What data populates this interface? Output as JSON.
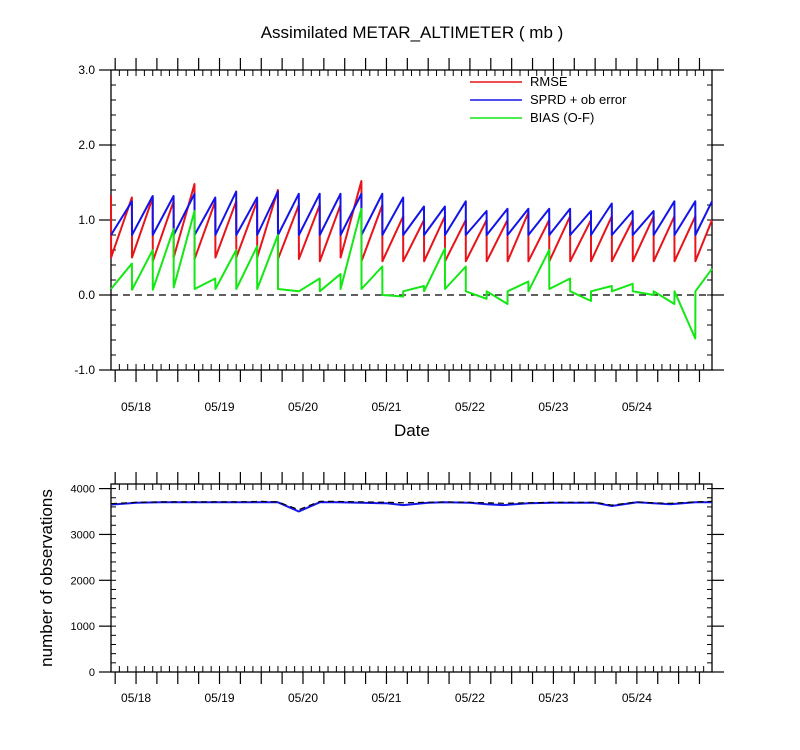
{
  "chart_data": [
    {
      "type": "line",
      "title": "Assimilated METAR_ALTIMETER ( mb )",
      "xlabel": "Date",
      "ylabel": "",
      "ylim": [
        -1.0,
        3.0
      ],
      "yticks": [
        "-1.0",
        "0.0",
        "1.0",
        "2.0",
        "3.0"
      ],
      "xticks": [
        "05/18",
        "05/19",
        "05/20",
        "05/21",
        "05/22",
        "05/23",
        "05/24"
      ],
      "x_range": [
        0,
        72
      ],
      "xtick_positions": [
        3,
        13,
        23,
        33,
        43,
        53,
        63
      ],
      "zero_line": "dashed",
      "legend_placement": "top-right",
      "series": [
        {
          "name": "RMSE",
          "color": "#e8141a",
          "x": [
            0,
            0.01,
            2.5,
            2.51,
            5,
            5.01,
            7.5,
            7.51,
            10,
            10.01,
            12.5,
            12.51,
            15,
            15.01,
            17.5,
            17.51,
            20,
            20.01,
            22.5,
            22.51,
            25,
            25.01,
            27.5,
            27.51,
            30,
            30.01,
            32.5,
            32.51,
            35,
            35.01,
            37.5,
            37.51,
            40,
            40.01,
            42.5,
            42.51,
            45,
            45.01,
            47.5,
            47.51,
            50,
            50.01,
            52.5,
            52.51,
            55,
            55.01,
            57.5,
            57.51,
            60,
            60.01,
            62.5,
            62.51,
            65,
            65.01,
            67.5,
            67.51,
            70,
            70.01,
            72
          ],
          "values": [
            1.33,
            0.5,
            1.3,
            0.5,
            1.3,
            0.45,
            1.25,
            0.5,
            1.48,
            0.48,
            1.25,
            0.5,
            1.25,
            0.5,
            1.25,
            0.5,
            1.4,
            0.48,
            1.2,
            0.48,
            1.2,
            0.45,
            1.2,
            0.5,
            1.52,
            0.45,
            1.2,
            0.45,
            1.05,
            0.45,
            1.0,
            0.45,
            1.05,
            0.45,
            1.0,
            0.45,
            1.0,
            0.45,
            1.0,
            0.45,
            1.1,
            0.45,
            1.0,
            0.45,
            1.05,
            0.45,
            1.0,
            0.45,
            1.05,
            0.45,
            1.0,
            0.45,
            1.05,
            0.45,
            1.05,
            0.45,
            1.05,
            0.45,
            1.0
          ]
        },
        {
          "name": "SPRD + ob error",
          "color": "#1414e8",
          "x": [
            0,
            2.5,
            2.51,
            5,
            5.01,
            7.5,
            7.51,
            10,
            10.01,
            12.5,
            12.51,
            15,
            15.01,
            17.5,
            17.51,
            20,
            20.01,
            22.5,
            22.51,
            25,
            25.01,
            27.5,
            27.51,
            30,
            30.01,
            32.5,
            32.51,
            35,
            35.01,
            37.5,
            37.51,
            40,
            40.01,
            42.5,
            42.51,
            45,
            45.01,
            47.5,
            47.51,
            50,
            50.01,
            52.5,
            52.51,
            55,
            55.01,
            57.5,
            57.51,
            60,
            60.01,
            62.5,
            62.51,
            65,
            65.01,
            67.5,
            67.51,
            70,
            70.01,
            72
          ],
          "values": [
            0.8,
            1.25,
            0.8,
            1.32,
            0.8,
            1.32,
            0.8,
            1.35,
            0.8,
            1.3,
            0.8,
            1.38,
            0.8,
            1.3,
            0.8,
            1.38,
            0.8,
            1.35,
            0.8,
            1.35,
            0.8,
            1.35,
            0.8,
            1.35,
            0.8,
            1.35,
            0.8,
            1.3,
            0.8,
            1.18,
            0.8,
            1.18,
            0.8,
            1.25,
            0.8,
            1.12,
            0.8,
            1.15,
            0.8,
            1.15,
            0.8,
            1.15,
            0.8,
            1.15,
            0.8,
            1.12,
            0.8,
            1.22,
            0.8,
            1.12,
            0.8,
            1.12,
            0.8,
            1.25,
            0.8,
            1.25,
            0.8,
            1.25
          ]
        },
        {
          "name": "BIAS (O-F)",
          "color": "#14e814",
          "x": [
            0,
            2.5,
            2.51,
            5,
            5.01,
            7.5,
            7.51,
            10,
            10.01,
            12.5,
            12.51,
            15,
            15.01,
            17.5,
            17.51,
            20,
            20.01,
            22.5,
            22.51,
            25,
            25.01,
            27.5,
            27.51,
            30,
            30.01,
            32.5,
            32.51,
            35,
            35.01,
            37.5,
            37.51,
            40,
            40.01,
            42.5,
            42.51,
            45,
            45.01,
            47.5,
            47.51,
            50,
            50.01,
            52.5,
            52.51,
            55,
            55.01,
            57.5,
            57.51,
            60,
            60.01,
            62.5,
            62.51,
            65,
            65.01,
            67.5,
            67.51,
            70,
            70.01,
            72
          ],
          "values": [
            0.08,
            0.42,
            0.07,
            0.6,
            0.07,
            0.88,
            0.1,
            1.12,
            0.08,
            0.22,
            0.08,
            0.6,
            0.08,
            0.65,
            0.08,
            0.8,
            0.08,
            0.05,
            0.05,
            0.22,
            0.05,
            0.28,
            0.08,
            1.15,
            0.08,
            0.38,
            0.0,
            -0.02,
            0.05,
            0.12,
            0.05,
            0.62,
            0.08,
            0.38,
            0.05,
            -0.05,
            0.05,
            -0.12,
            0.05,
            0.18,
            0.05,
            0.6,
            0.08,
            0.22,
            0.05,
            -0.08,
            0.05,
            0.12,
            0.05,
            0.15,
            0.05,
            0.0,
            0.05,
            -0.12,
            0.05,
            -0.58,
            0.05,
            0.35
          ]
        }
      ]
    },
    {
      "type": "line",
      "title": "",
      "xlabel": "",
      "ylabel": "number of observations",
      "ylim": [
        0,
        4100
      ],
      "yticks": [
        "0",
        "1000",
        "2000",
        "3000",
        "4000"
      ],
      "xticks": [
        "05/18",
        "05/19",
        "05/20",
        "05/21",
        "05/22",
        "05/23",
        "05/24"
      ],
      "x_range": [
        0,
        72
      ],
      "xtick_positions": [
        3,
        13,
        23,
        33,
        43,
        53,
        63
      ],
      "series": [
        {
          "color": "#1414e8",
          "style": "solid",
          "x": [
            0,
            3,
            6,
            9,
            12,
            15,
            18,
            20,
            22.5,
            25,
            27,
            30,
            33,
            35,
            38,
            40,
            43,
            45,
            47,
            50,
            53,
            55,
            58,
            60,
            63,
            65,
            67,
            70,
            72
          ],
          "values": [
            3650,
            3690,
            3700,
            3700,
            3700,
            3700,
            3700,
            3700,
            3500,
            3700,
            3700,
            3690,
            3680,
            3640,
            3690,
            3700,
            3690,
            3660,
            3640,
            3680,
            3690,
            3690,
            3690,
            3620,
            3700,
            3680,
            3660,
            3700,
            3700
          ]
        },
        {
          "color": "#000000",
          "style": "dashed",
          "x": [
            0,
            3,
            6,
            9,
            12,
            15,
            18,
            20,
            22.5,
            25,
            27,
            30,
            33,
            35,
            38,
            40,
            43,
            45,
            47,
            50,
            53,
            55,
            58,
            60,
            63,
            65,
            67,
            70,
            72
          ],
          "values": [
            3670,
            3700,
            3710,
            3710,
            3710,
            3710,
            3720,
            3710,
            3540,
            3720,
            3720,
            3710,
            3700,
            3690,
            3700,
            3710,
            3700,
            3690,
            3680,
            3690,
            3700,
            3700,
            3700,
            3640,
            3710,
            3690,
            3680,
            3710,
            3720
          ]
        }
      ]
    }
  ]
}
